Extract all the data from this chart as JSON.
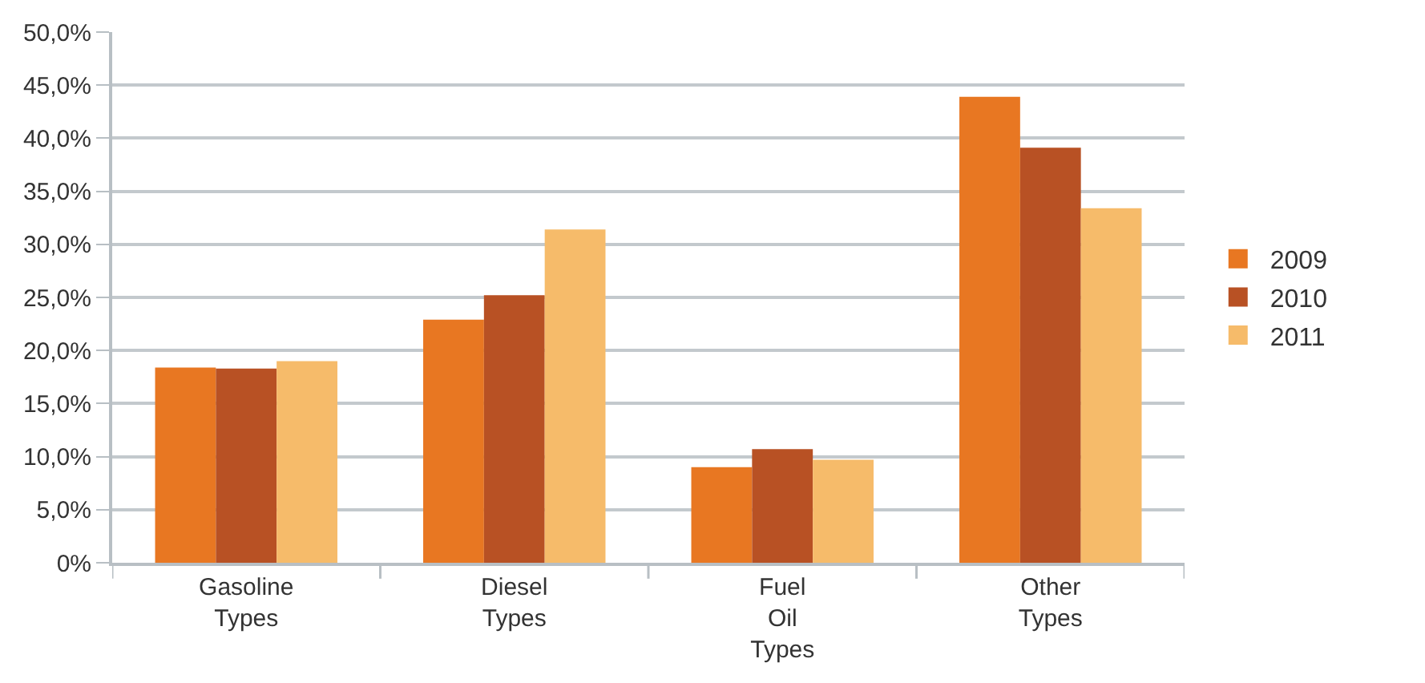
{
  "chart_data": {
    "type": "bar",
    "categories": [
      "Gasoline Types",
      "Diesel Types",
      "Fuel Oil Types",
      "Other Types"
    ],
    "series": [
      {
        "name": "2009",
        "color": "#e87722",
        "values": [
          18.4,
          22.9,
          9.0,
          43.9
        ]
      },
      {
        "name": "2010",
        "color": "#b85124",
        "values": [
          18.3,
          25.2,
          10.7,
          39.1
        ]
      },
      {
        "name": "2011",
        "color": "#f6bb6a",
        "values": [
          19.0,
          31.4,
          9.7,
          33.4
        ]
      }
    ],
    "ylim": [
      0,
      50
    ],
    "yticks": [
      {
        "value": 0,
        "label": "0%"
      },
      {
        "value": 5,
        "label": "5,0%"
      },
      {
        "value": 10,
        "label": "10,0%"
      },
      {
        "value": 15,
        "label": "15,0%"
      },
      {
        "value": 20,
        "label": "20,0%"
      },
      {
        "value": 25,
        "label": "25,0%"
      },
      {
        "value": 30,
        "label": "30,0%"
      },
      {
        "value": 35,
        "label": "35,0%"
      },
      {
        "value": 40,
        "label": "40,0%"
      },
      {
        "value": 45,
        "label": "45,0%"
      },
      {
        "value": 50,
        "label": "50,0%"
      }
    ],
    "grid": "y",
    "legend": "right"
  }
}
